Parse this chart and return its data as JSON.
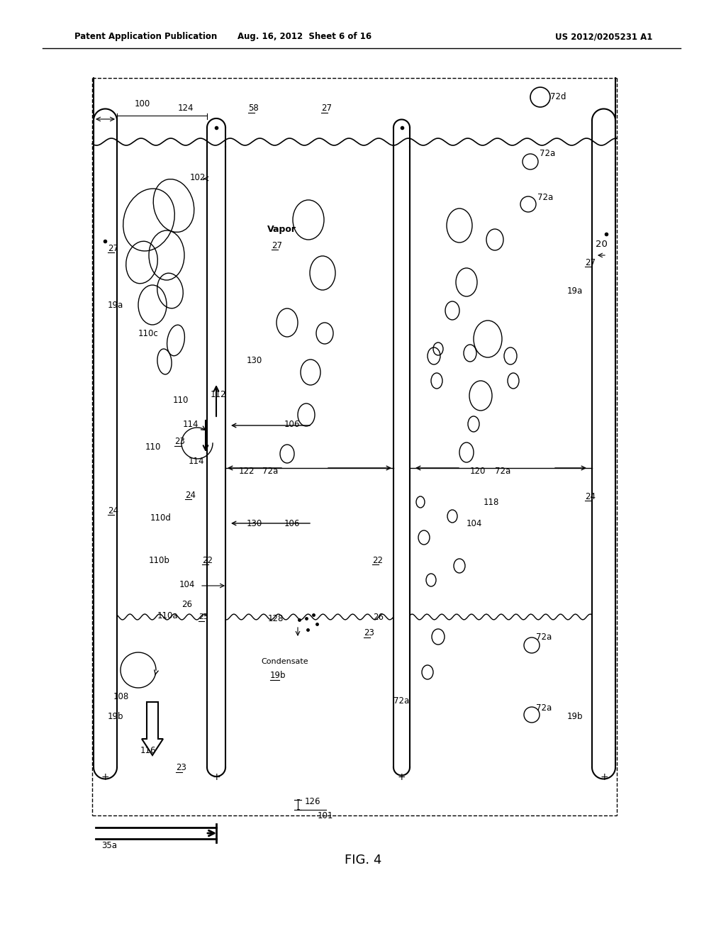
{
  "title": "FIG. 4",
  "header_left": "Patent Application Publication",
  "header_center": "Aug. 16, 2012  Sheet 6 of 16",
  "header_right": "US 2012/0205231 A1",
  "bg_color": "#ffffff",
  "line_color": "#000000",
  "figure_caption": "FIG. 4"
}
